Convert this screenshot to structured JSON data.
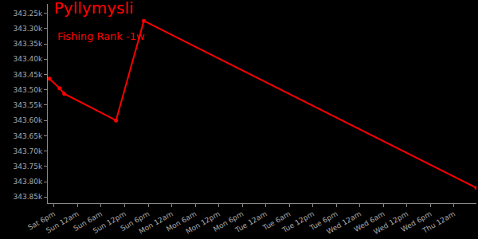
{
  "chart_data": {
    "type": "line",
    "title": "Pyllymysli",
    "subtitle": "Fishing Rank -1w",
    "x": [
      16.8,
      19.4,
      20.6,
      33.8,
      40.9,
      125.7
    ],
    "values": [
      343464,
      343495,
      343513,
      343600,
      343275,
      343820
    ],
    "color": "#ff0000",
    "marker": "circle",
    "grid": false,
    "xlim": [
      16.4,
      125.7
    ],
    "xticks": [
      {
        "value": 18,
        "label": "Sat 6pm"
      },
      {
        "value": 24,
        "label": "Sun 12am"
      },
      {
        "value": 30,
        "label": "Sun 6am"
      },
      {
        "value": 36,
        "label": "Sun 12pm"
      },
      {
        "value": 42,
        "label": "Sun 6pm"
      },
      {
        "value": 48,
        "label": "Mon 12am"
      },
      {
        "value": 54,
        "label": "Mon 6am"
      },
      {
        "value": 60,
        "label": "Mon 12pm"
      },
      {
        "value": 66,
        "label": "Mon 6pm"
      },
      {
        "value": 72,
        "label": "Tue 12am"
      },
      {
        "value": 78,
        "label": "Tue 6am"
      },
      {
        "value": 84,
        "label": "Tue 12pm"
      },
      {
        "value": 90,
        "label": "Tue 6pm"
      },
      {
        "value": 96,
        "label": "Wed 12am"
      },
      {
        "value": 102,
        "label": "Wed 6am"
      },
      {
        "value": 108,
        "label": "Wed 12pm"
      },
      {
        "value": 114,
        "label": "Wed 6pm"
      },
      {
        "value": 120,
        "label": "Thu 12am"
      }
    ],
    "ylim": [
      343870,
      343220
    ],
    "yticks": [
      {
        "value": 343250,
        "label": "343.25k"
      },
      {
        "value": 343300,
        "label": "343.30k"
      },
      {
        "value": 343350,
        "label": "343.35k"
      },
      {
        "value": 343400,
        "label": "343.40k"
      },
      {
        "value": 343450,
        "label": "343.45k"
      },
      {
        "value": 343500,
        "label": "343.50k"
      },
      {
        "value": 343550,
        "label": "343.55k"
      },
      {
        "value": 343600,
        "label": "343.60k"
      },
      {
        "value": 343650,
        "label": "343.65k"
      },
      {
        "value": 343700,
        "label": "343.70k"
      },
      {
        "value": 343750,
        "label": "343.75k"
      },
      {
        "value": 343800,
        "label": "343.80k"
      },
      {
        "value": 343850,
        "label": "343.85k"
      }
    ]
  }
}
